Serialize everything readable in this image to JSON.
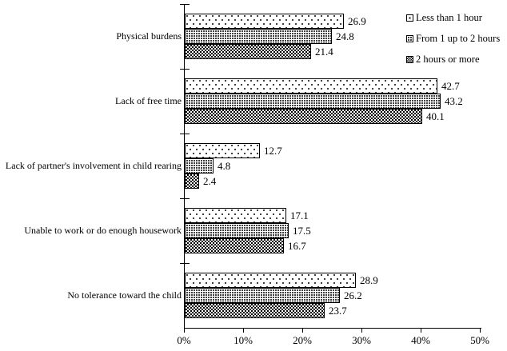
{
  "chart_data": {
    "type": "bar",
    "orientation": "horizontal",
    "title": "",
    "xlabel": "",
    "ylabel": "",
    "categories": [
      "Physical burdens",
      "Lack of free time",
      "Lack of partner's involvement in child rearing",
      "Unable to work or do enough housework",
      "No tolerance toward the child"
    ],
    "series": [
      {
        "name": "Less than 1 hour",
        "pattern": "sparse-dots",
        "values": [
          26.9,
          42.7,
          12.7,
          17.1,
          28.9
        ]
      },
      {
        "name": "From 1 up to 2 hours",
        "pattern": "dense-dots",
        "values": [
          24.8,
          43.2,
          4.8,
          17.5,
          26.2
        ]
      },
      {
        "name": "2 hours or more",
        "pattern": "checkerboard",
        "values": [
          21.4,
          40.1,
          2.4,
          16.7,
          23.7
        ]
      }
    ],
    "xlim": [
      0,
      50
    ],
    "x_ticks": [
      {
        "value": 0,
        "label": "0%"
      },
      {
        "value": 10,
        "label": "10%"
      },
      {
        "value": 20,
        "label": "20%"
      },
      {
        "value": 30,
        "label": "30%"
      },
      {
        "value": 40,
        "label": "40%"
      },
      {
        "value": 50,
        "label": "50%"
      }
    ],
    "value_labels_shown": true,
    "value_label_decimals": 1,
    "legend_position": "top-right",
    "grid": false,
    "colors": {
      "foreground": "#000000",
      "background": "#ffffff"
    }
  }
}
